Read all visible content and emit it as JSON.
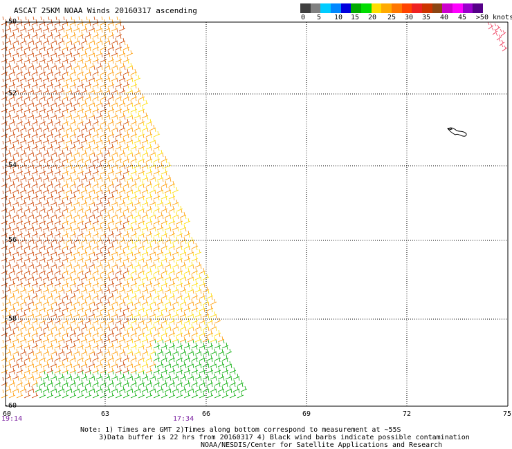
{
  "title": "ASCAT 25KM NOAA Winds 20160317 ascending",
  "colorbar": {
    "unit_label": ">50 knots",
    "labels": [
      "0",
      "5",
      "10",
      "15",
      "20",
      "25",
      "30",
      "35",
      "40",
      "45"
    ],
    "segments": [
      "#404040",
      "#808080",
      "#00ccff",
      "#0088ff",
      "#0000dd",
      "#00aa00",
      "#00dd00",
      "#ffdd00",
      "#ffaa00",
      "#ff7700",
      "#ff4400",
      "#ee2222",
      "#cc3300",
      "#8b4513",
      "#cc00cc",
      "#ff00ff",
      "#9900cc",
      "#550088"
    ]
  },
  "axes": {
    "x_ticks": [
      "60",
      "63",
      "66",
      "69",
      "72",
      "75"
    ],
    "y_ticks": [
      "-50",
      "-52",
      "-54",
      "-56",
      "-58",
      "-60"
    ]
  },
  "times": {
    "start": "19:14",
    "end": "17:34"
  },
  "notes": {
    "line1": "Note: 1) Times are GMT 2)Times along bottom correspond to measurement at ~55S",
    "line2": "3)Data buffer is 22 hrs from 20160317 4) Black wind barbs indicate possible contamination",
    "line3": "NOAA/NESDIS/Center for Satellite Applications and Research"
  },
  "colors": {
    "grid": "#000000",
    "barb_strong": "#cc4400",
    "barb_mid": "#ff9900",
    "barb_light": "#ffdd00",
    "barb_green": "#00aa00",
    "barb_red": "#ee3355",
    "time_text": "#7a1fa0"
  }
}
